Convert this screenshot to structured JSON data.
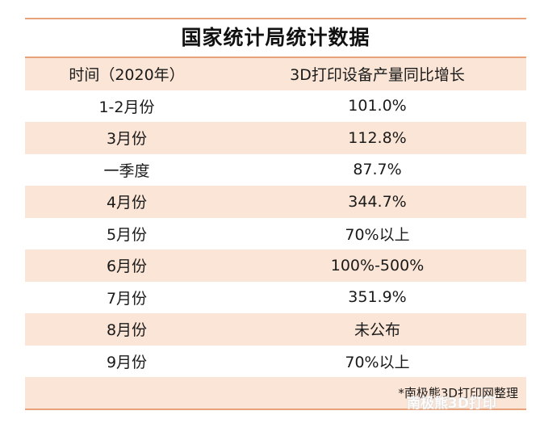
{
  "title": "国家统计局统计数据",
  "header": {
    "time": "时间（2020年）",
    "growth": "3D打印设备产量同比增长"
  },
  "rows": [
    {
      "time": "1-2月份",
      "growth": "101.0%"
    },
    {
      "time": "3月份",
      "growth": "112.8%"
    },
    {
      "time": "一季度",
      "growth": "87.7%"
    },
    {
      "time": "4月份",
      "growth": "344.7%"
    },
    {
      "time": "5月份",
      "growth": "70%以上"
    },
    {
      "time": "6月份",
      "growth": "100%-500%"
    },
    {
      "time": "7月份",
      "growth": "351.9%"
    },
    {
      "time": "8月份",
      "growth": "未公布"
    },
    {
      "time": "9月份",
      "growth": "70%以上"
    }
  ],
  "note": "*南极熊3D打印网整理",
  "watermark": "南极熊3D打印",
  "colors": {
    "rule": "#e8a27a",
    "shade": "#fbe5d6"
  }
}
